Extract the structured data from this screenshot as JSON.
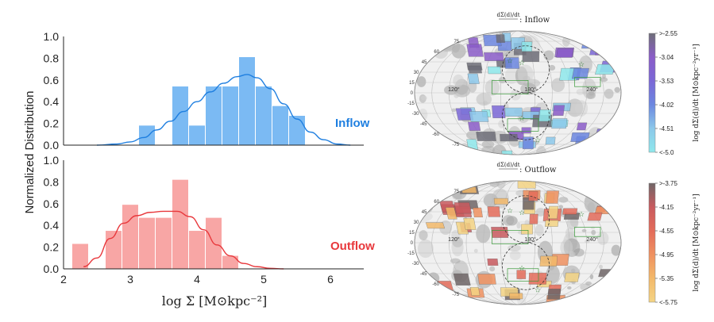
{
  "chart_data": [
    {
      "type": "bar",
      "panel": "histogram",
      "ylabel": "Normalized Distribution",
      "xlabel": "log Σ  [M⊙kpc⁻²]",
      "xlim": [
        2,
        6.5
      ],
      "xticks": [
        "2",
        "3",
        "4",
        "5",
        "6"
      ],
      "yticks": [
        "0.0",
        "0.2",
        "0.4",
        "0.6",
        "0.8",
        "1.0"
      ],
      "ylim": [
        0,
        1
      ],
      "bin_width": 0.25,
      "series": [
        {
          "name": "Inflow",
          "color": "#5aa9f0",
          "line_color": "#1f7fe0",
          "bin_starts": [
            3.125,
            3.375,
            3.625,
            3.875,
            4.125,
            4.375,
            4.625,
            4.875,
            5.125,
            5.375
          ],
          "values": [
            0.18,
            0.0,
            0.54,
            0.18,
            0.54,
            0.54,
            0.81,
            0.54,
            0.36,
            0.27
          ],
          "kde_x": [
            2.5,
            2.8,
            3.0,
            3.2,
            3.4,
            3.6,
            3.8,
            4.0,
            4.2,
            4.4,
            4.6,
            4.75,
            4.9,
            5.1,
            5.3,
            5.5,
            5.7,
            5.9,
            6.1,
            6.3
          ],
          "kde_y": [
            0.0,
            0.01,
            0.03,
            0.07,
            0.14,
            0.22,
            0.31,
            0.4,
            0.49,
            0.57,
            0.63,
            0.65,
            0.62,
            0.52,
            0.38,
            0.24,
            0.12,
            0.05,
            0.01,
            0.0
          ]
        },
        {
          "name": "Outflow",
          "color": "#f6908f",
          "line_color": "#e8383c",
          "bin_starts": [
            2.125,
            2.375,
            2.625,
            2.875,
            3.125,
            3.375,
            3.625,
            3.875,
            4.125,
            4.375
          ],
          "values": [
            0.23,
            0.0,
            0.35,
            0.59,
            0.47,
            0.47,
            0.82,
            0.35,
            0.47,
            0.12
          ],
          "kde_x": [
            2.3,
            2.5,
            2.7,
            2.9,
            3.1,
            3.3,
            3.5,
            3.7,
            3.9,
            4.1,
            4.3,
            4.5,
            4.7,
            4.9,
            5.1,
            5.3
          ],
          "kde_y": [
            0.02,
            0.1,
            0.28,
            0.42,
            0.49,
            0.52,
            0.53,
            0.53,
            0.48,
            0.36,
            0.22,
            0.12,
            0.05,
            0.02,
            0.005,
            0.0
          ]
        }
      ]
    },
    {
      "type": "heatmap",
      "panel": "sky-map-inflow",
      "title_frac": "dΣ(d)/dt",
      "title_suffix": ": Inflow",
      "lat_labels": [
        "75",
        "60",
        "45",
        "30",
        "15",
        "0",
        "-15",
        "-30",
        "-45",
        "-60",
        "-75"
      ],
      "lon_labels": [
        "120°",
        "180°",
        "240°"
      ],
      "colorbar": {
        "ticks": [
          ">-2.55",
          "-3.04",
          "-3.53",
          "-4.02",
          "-4.51",
          "<-5.0"
        ],
        "label": "log dΣ(d)/dt  [M⊙kpc⁻²yr⁻¹]",
        "colors": [
          "#6e6e78",
          "#8a5cc8",
          "#7b67d6",
          "#6b87e0",
          "#8cc8ea",
          "#8fe8ec"
        ]
      }
    },
    {
      "type": "heatmap",
      "panel": "sky-map-outflow",
      "title_frac": "dΣ(d)/dt",
      "title_suffix": ": Outflow",
      "lat_labels": [
        "75",
        "60",
        "45",
        "30",
        "15",
        "0",
        "-15",
        "-30",
        "-45",
        "-60",
        "-75"
      ],
      "lon_labels": [
        "120°",
        "180°",
        "240°"
      ],
      "colorbar": {
        "ticks": [
          ">-3.75",
          "-4.15",
          "-4.55",
          "-4.95",
          "-5.35",
          "<-5.75"
        ],
        "label": "log dΣ(d)/dt  [M⊙kpc⁻²yr⁻¹]",
        "colors": [
          "#6f6667",
          "#c85a5e",
          "#e36b5a",
          "#ef9160",
          "#f3b96a",
          "#f4d484"
        ]
      }
    }
  ]
}
